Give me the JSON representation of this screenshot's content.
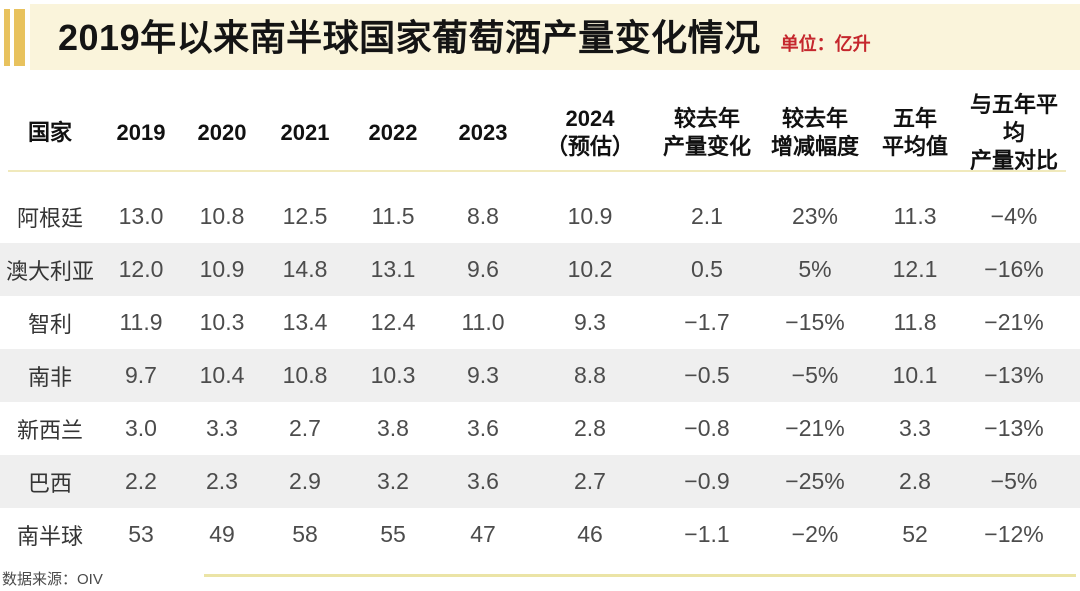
{
  "header": {
    "title": "2019年以来南半球国家葡萄酒产量变化情况",
    "unit_label": "单位：亿升"
  },
  "colors": {
    "accent_gold": "#E8C25E",
    "band_background": "#FAF4DB",
    "unit_red": "#C5272D",
    "divider_yellow": "#F0E9BC",
    "row_shade_gray": "#EFEFEF"
  },
  "table": {
    "columns": [
      {
        "line1": "国家",
        "line2": ""
      },
      {
        "line1": "2019",
        "line2": ""
      },
      {
        "line1": "2020",
        "line2": ""
      },
      {
        "line1": "2021",
        "line2": ""
      },
      {
        "line1": "2022",
        "line2": ""
      },
      {
        "line1": "2023",
        "line2": ""
      },
      {
        "line1": "2024",
        "line2": "（预估）"
      },
      {
        "line1": "较去年",
        "line2": "产量变化"
      },
      {
        "line1": "较去年",
        "line2": "增减幅度"
      },
      {
        "line1": "五年",
        "line2": "平均值"
      },
      {
        "line1": "与五年平均",
        "line2": "产量对比"
      }
    ]
  },
  "footer": {
    "source": "数据来源：OIV"
  },
  "chart_data": {
    "type": "table",
    "title": "2019年以来南半球国家葡萄酒产量变化情况",
    "unit": "亿升",
    "source": "OIV",
    "columns": [
      "国家",
      "2019",
      "2020",
      "2021",
      "2022",
      "2023",
      "2024（预估）",
      "较去年产量变化",
      "较去年增减幅度",
      "五年平均值",
      "与五年平均产量对比"
    ],
    "rows": [
      [
        "阿根廷",
        "13.0",
        "10.8",
        "12.5",
        "11.5",
        "8.8",
        "10.9",
        "2.1",
        "23%",
        "11.3",
        "−4%"
      ],
      [
        "澳大利亚",
        "12.0",
        "10.9",
        "14.8",
        "13.1",
        "9.6",
        "10.2",
        "0.5",
        "5%",
        "12.1",
        "−16%"
      ],
      [
        "智利",
        "11.9",
        "10.3",
        "13.4",
        "12.4",
        "11.0",
        "9.3",
        "−1.7",
        "−15%",
        "11.8",
        "−21%"
      ],
      [
        "南非",
        "9.7",
        "10.4",
        "10.8",
        "10.3",
        "9.3",
        "8.8",
        "−0.5",
        "−5%",
        "10.1",
        "−13%"
      ],
      [
        "新西兰",
        "3.0",
        "3.3",
        "2.7",
        "3.8",
        "3.6",
        "2.8",
        "−0.8",
        "−21%",
        "3.3",
        "−13%"
      ],
      [
        "巴西",
        "2.2",
        "2.3",
        "2.9",
        "3.2",
        "3.6",
        "2.7",
        "−0.9",
        "−25%",
        "2.8",
        "−5%"
      ],
      [
        "南半球",
        "53",
        "49",
        "58",
        "55",
        "47",
        "46",
        "−1.1",
        "−2%",
        "52",
        "−12%"
      ]
    ]
  }
}
